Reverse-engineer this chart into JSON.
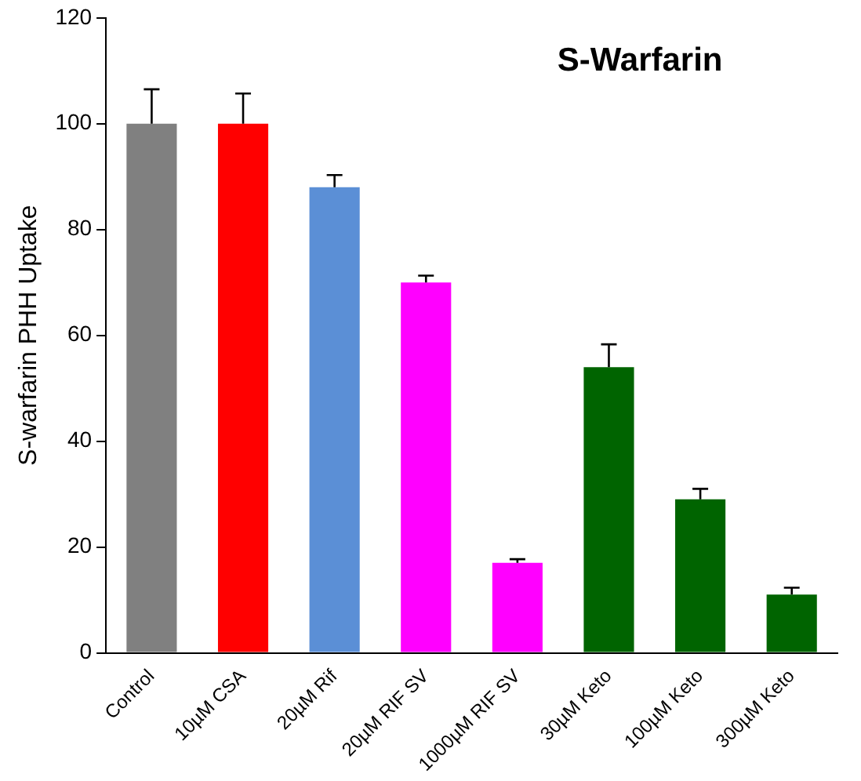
{
  "chart_data": {
    "type": "bar",
    "title": "S-Warfarin",
    "ylabel": "S-warfarin PHH Uptake",
    "categories": [
      "Control",
      "10µM CSA",
      "20µM Rif",
      "20µM RIF SV",
      "1000µM RIF SV",
      "30µM Keto",
      "100µM Keto",
      "300µM Keto"
    ],
    "values": [
      100,
      100,
      88,
      70,
      17,
      54,
      29,
      11
    ],
    "colors": [
      "#808080",
      "#ff0000",
      "#5b8fd6",
      "#ff00ff",
      "#ff00ff",
      "#006400",
      "#006400",
      "#006400"
    ],
    "errors": [
      [
        100,
        106.5
      ],
      [
        100,
        105.7
      ],
      [
        88,
        90.3
      ],
      [
        70,
        71.3
      ],
      [
        17,
        17.7
      ],
      [
        54,
        58.3
      ],
      [
        29,
        31
      ],
      [
        11,
        12.3
      ]
    ],
    "ylim": [
      0,
      120
    ],
    "yticks": [
      0,
      20,
      40,
      60,
      80,
      100,
      120
    ],
    "grid": false,
    "legend": false
  }
}
